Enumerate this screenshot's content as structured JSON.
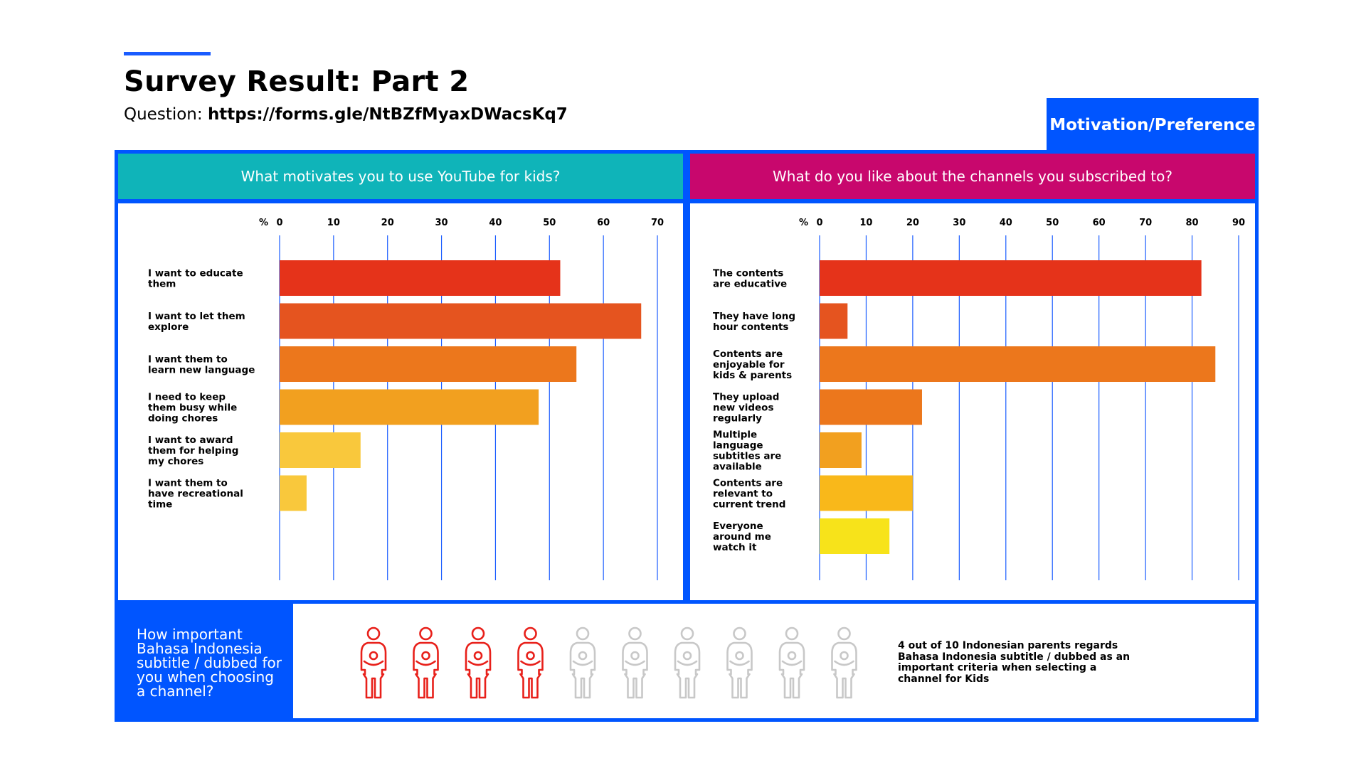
{
  "page": {
    "title": "Survey Result: Part 2",
    "question_prefix": "Question:",
    "question_link": "https://forms.gle/NtBZfMyaxDWacsKq7",
    "tag": "Motivation/Preference"
  },
  "colors": {
    "accent": "#0055ff",
    "teal": "#0fb4b9",
    "magenta": "#c8076d",
    "person_highlight": "#e8201a",
    "person_muted": "#c8c8c8"
  },
  "chart_data": [
    {
      "type": "bar",
      "orientation": "horizontal",
      "title": "What motivates you to use YouTube for kids?",
      "xlabel": "%",
      "xlim": [
        0,
        70
      ],
      "ticks": [
        0,
        10,
        20,
        30,
        40,
        50,
        60,
        70
      ],
      "grid": true,
      "categories": [
        "I want to educate them",
        "I want to let them explore",
        "I want them to learn new language",
        "I need to keep them busy while doing chores",
        "I want to award them for helping my chores",
        "I want them to have recreational time"
      ],
      "values": [
        52,
        67,
        55,
        48,
        15,
        5
      ],
      "bar_colors": [
        "#e5331a",
        "#e5541f",
        "#ec771c",
        "#f2a01f",
        "#f9c83c",
        "#f9c83c"
      ]
    },
    {
      "type": "bar",
      "orientation": "horizontal",
      "title": "What do you like about the channels you subscribed to?",
      "xlabel": "%",
      "xlim": [
        0,
        90
      ],
      "ticks": [
        0,
        10,
        20,
        30,
        40,
        50,
        60,
        70,
        80,
        90
      ],
      "grid": true,
      "categories": [
        "The contents are educative",
        "They have long hour contents",
        "Contents are enjoyable for kids & parents",
        "They upload new videos regularly",
        "Multiple language subtitles are available",
        "Contents are relevant to current trend",
        "Everyone around me watch it"
      ],
      "values": [
        82,
        6,
        85,
        22,
        9,
        20,
        15
      ],
      "bar_colors": [
        "#e5331a",
        "#e5541f",
        "#ec771c",
        "#ec771c",
        "#f2a01f",
        "#f9b81a",
        "#f7e31a"
      ]
    }
  ],
  "bottom": {
    "question": "How important Bahasa Indonesia subtitle / dubbed for you when choosing a channel?",
    "highlighted": 4,
    "total": 10,
    "note": "4 out of 10 Indonesian parents regards Bahasa Indonesia subtitle / dubbed as an important criteria when selecting a channel for Kids"
  }
}
